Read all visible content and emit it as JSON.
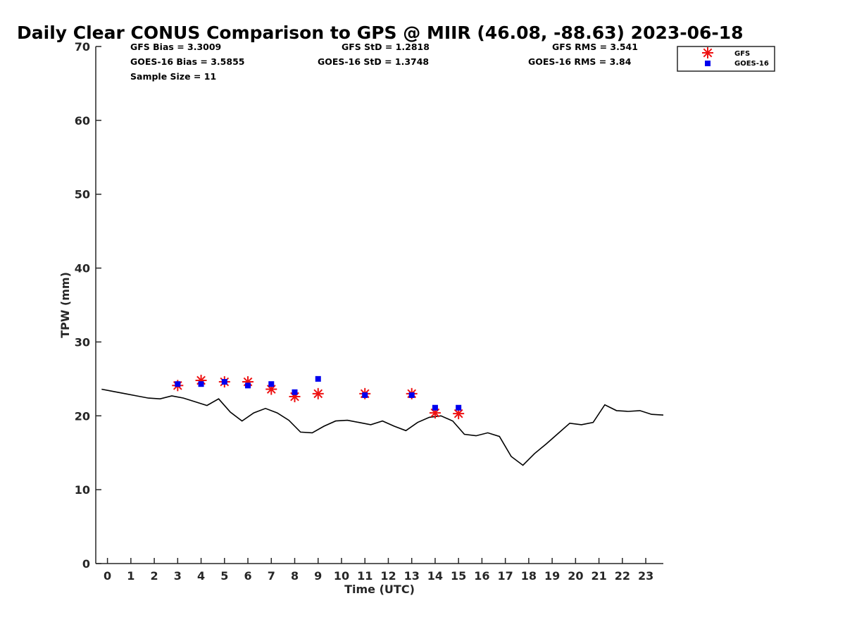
{
  "chart_data": {
    "type": "line",
    "title": "Daily Clear CONUS Comparison to GPS @ MIIR (46.08, -88.63) 2023-06-18",
    "xlabel": "Time (UTC)",
    "ylabel": "TPW (mm)",
    "xlim": [
      -0.5,
      23.75
    ],
    "ylim": [
      0,
      70
    ],
    "x_ticks": [
      "0",
      "1",
      "2",
      "3",
      "4",
      "5",
      "6",
      "7",
      "8",
      "9",
      "10",
      "11",
      "12",
      "13",
      "14",
      "15",
      "16",
      "17",
      "18",
      "19",
      "20",
      "21",
      "22",
      "23"
    ],
    "y_ticks": [
      "0",
      "10",
      "20",
      "30",
      "40",
      "50",
      "60",
      "70"
    ],
    "stats": {
      "gfs_bias": "GFS Bias = 3.3009",
      "goes_bias": "GOES-16 Bias = 3.5855",
      "sample_size": "Sample Size = 11",
      "gfs_std": "GFS StD = 1.2818",
      "goes_std": "GOES-16 StD = 1.3748",
      "gfs_rms": "GFS RMS = 3.541",
      "goes_rms": "GOES-16 RMS = 3.84"
    },
    "legend": {
      "gfs": "GFS",
      "goes": "GOES-16",
      "position": "top-right"
    },
    "series": [
      {
        "name": "GPS",
        "style": "line",
        "color": "#000000",
        "x": [
          -0.25,
          0.25,
          0.75,
          1.25,
          1.75,
          2.25,
          2.75,
          3.25,
          3.75,
          4.25,
          4.75,
          5.25,
          5.75,
          6.25,
          6.75,
          7.25,
          7.75,
          8.25,
          8.75,
          9.25,
          9.75,
          10.25,
          10.75,
          11.25,
          11.75,
          12.25,
          12.75,
          13.25,
          13.75,
          14.25,
          14.75,
          15.25,
          15.75,
          16.25,
          16.75,
          17.25,
          17.75,
          18.25,
          18.75,
          19.25,
          19.75,
          20.25,
          20.75,
          21.25,
          21.75,
          22.25,
          22.75,
          23.25,
          23.75
        ],
        "values": [
          23.6,
          23.3,
          23.0,
          22.7,
          22.4,
          22.3,
          22.7,
          22.4,
          21.9,
          21.4,
          22.3,
          20.5,
          19.3,
          20.4,
          21.0,
          20.4,
          19.4,
          17.8,
          17.7,
          18.6,
          19.3,
          19.4,
          19.1,
          18.8,
          19.3,
          18.6,
          18.0,
          19.1,
          19.8,
          20.0,
          19.3,
          17.5,
          17.3,
          17.7,
          17.2,
          14.5,
          13.3,
          14.9,
          16.2,
          17.6,
          19.0,
          18.8,
          19.1,
          21.5,
          20.7,
          20.6,
          20.7,
          20.2,
          20.1
        ]
      },
      {
        "name": "GFS",
        "style": "asterisk",
        "color": "#ee1111",
        "x": [
          3,
          4,
          5,
          6,
          7,
          8,
          9,
          11,
          13,
          14,
          15
        ],
        "values": [
          24.1,
          24.8,
          24.6,
          24.6,
          23.6,
          22.6,
          23.0,
          23.0,
          23.0,
          20.4,
          20.3
        ]
      },
      {
        "name": "GOES-16",
        "style": "square",
        "color": "#0000ee",
        "x": [
          3,
          4,
          5,
          6,
          7,
          8,
          9,
          11,
          13,
          14,
          15
        ],
        "values": [
          24.3,
          24.3,
          24.6,
          24.1,
          24.3,
          23.2,
          25.0,
          22.8,
          22.8,
          21.1,
          21.1
        ]
      }
    ]
  }
}
